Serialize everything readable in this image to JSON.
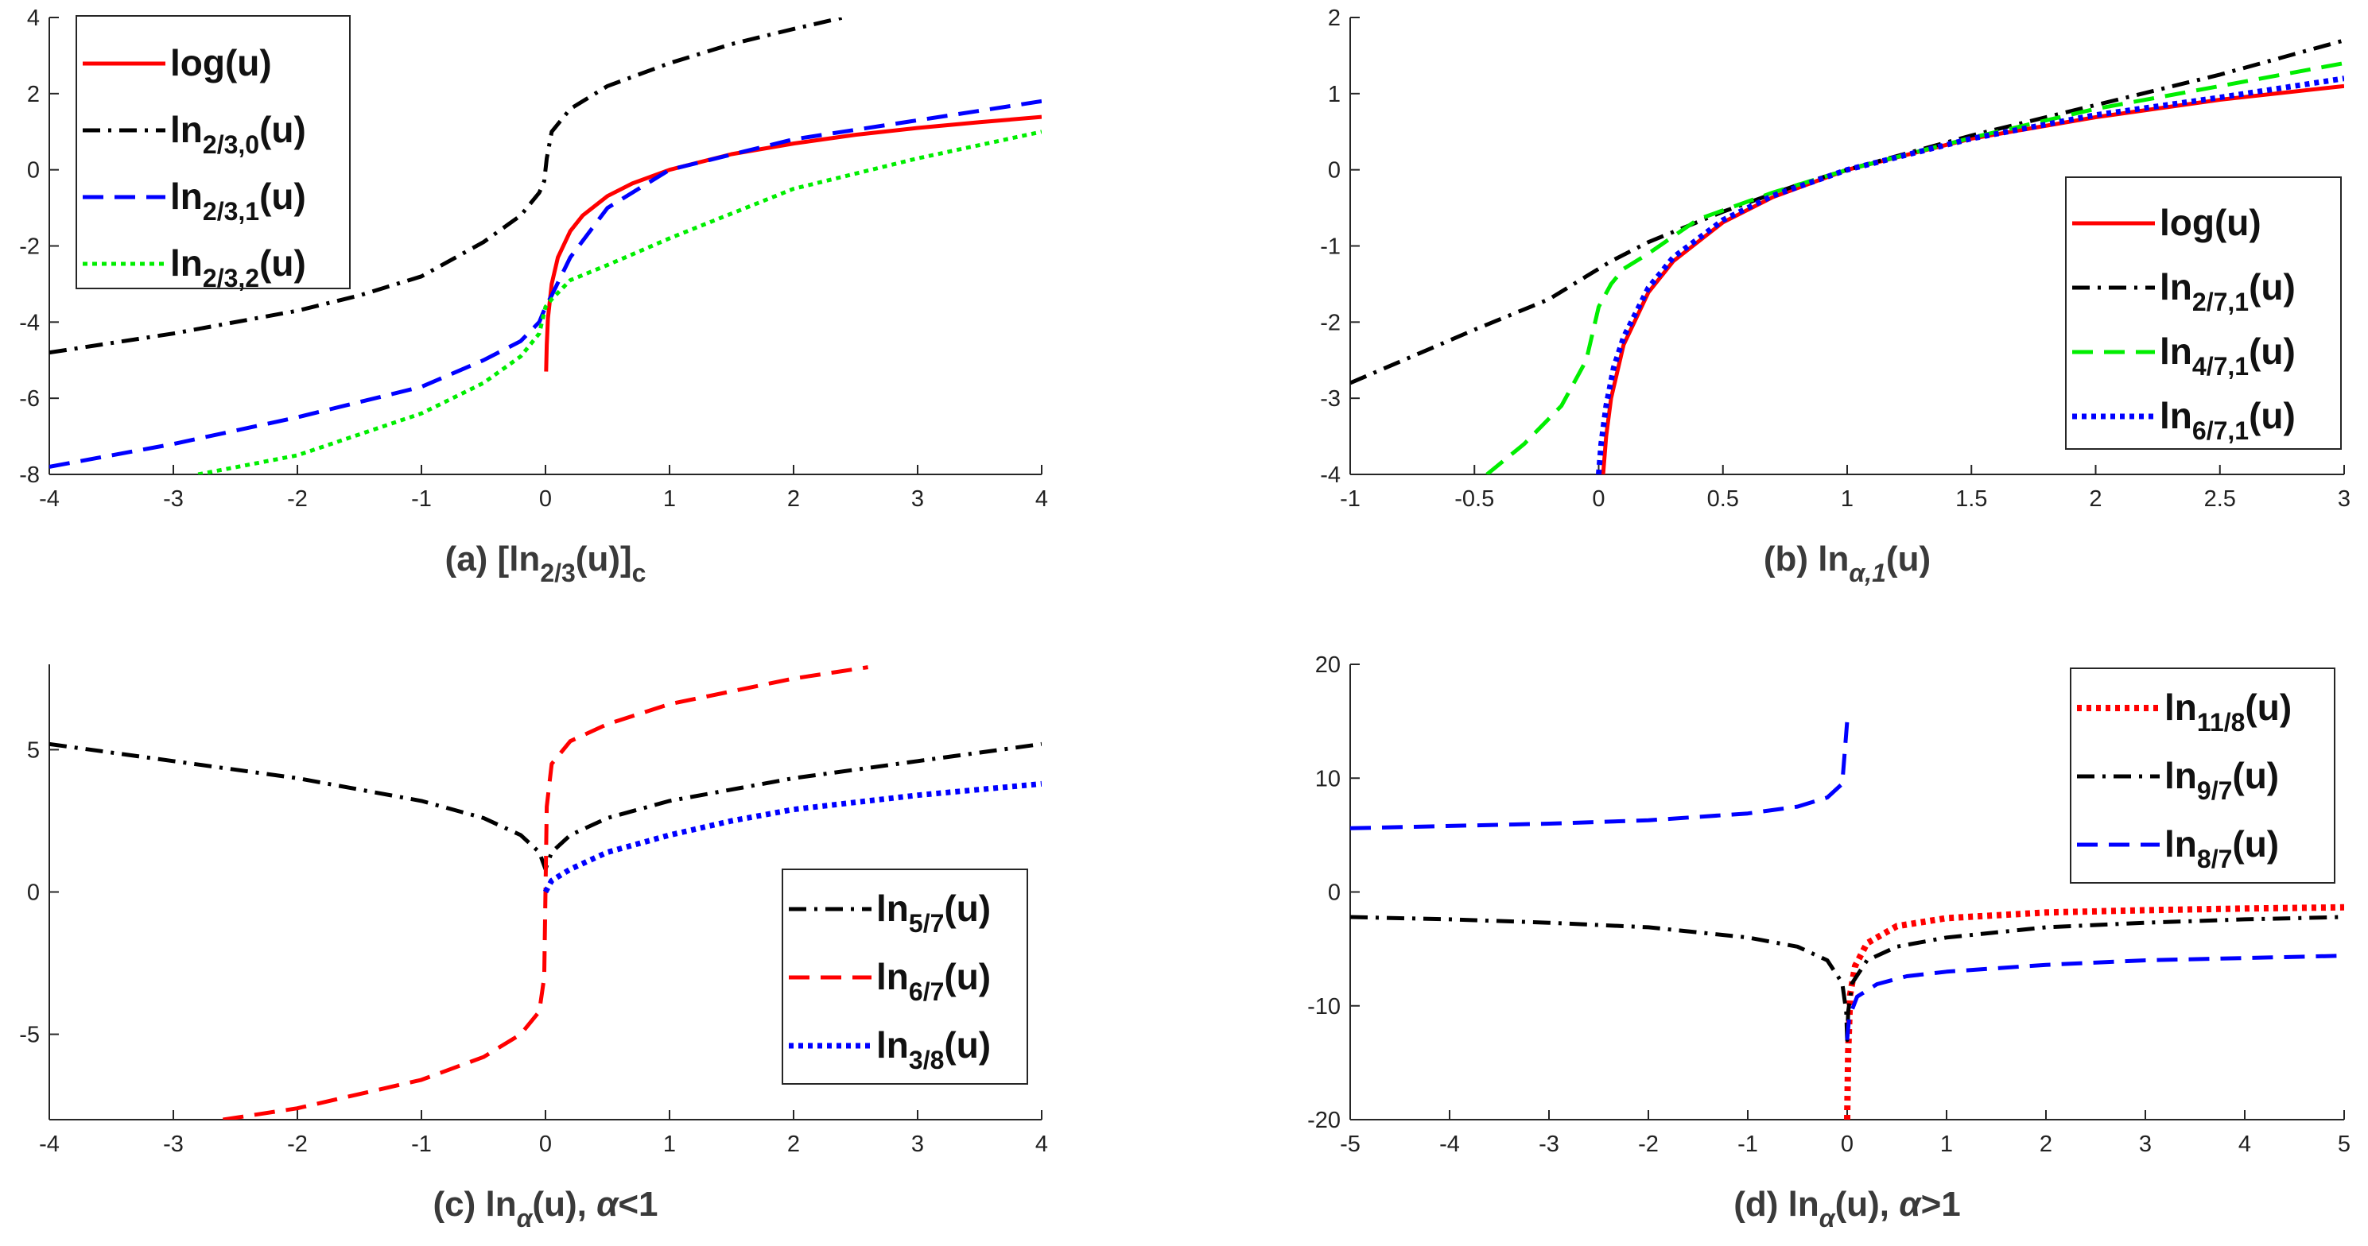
{
  "chart_data": [
    {
      "type": "line",
      "caption": "(a) [ln2/3(u)]c",
      "caption_parts": {
        "pre": "(a) [ln",
        "sub1": "2/3",
        "mid": "(u)]",
        "sub2": "c"
      },
      "xlim": [
        -4,
        4
      ],
      "ylim": [
        -8,
        4
      ],
      "xticks": [
        -4,
        -3,
        -2,
        -1,
        0,
        1,
        2,
        3,
        4
      ],
      "yticks": [
        -8,
        -6,
        -4,
        -2,
        0,
        2,
        4
      ],
      "legend_position": "top-left",
      "series": [
        {
          "name": "log(u)",
          "label": "log(u)",
          "sub": "",
          "color": "#ff0000",
          "dash": "solid",
          "width": 5,
          "x": [
            0.005,
            0.01,
            0.02,
            0.05,
            0.1,
            0.2,
            0.3,
            0.5,
            0.7,
            1,
            1.5,
            2,
            2.5,
            3,
            3.5,
            4
          ],
          "y": [
            -5.3,
            -4.6,
            -3.9,
            -3.0,
            -2.3,
            -1.61,
            -1.2,
            -0.69,
            -0.36,
            0,
            0.41,
            0.69,
            0.92,
            1.1,
            1.25,
            1.39
          ]
        },
        {
          "name": "ln2/3,0(u)",
          "label": "ln",
          "sub": "2/3,0",
          "color": "#000000",
          "dash": "dashdot",
          "width": 5,
          "x": [
            -4,
            -3,
            -2,
            -1.5,
            -1,
            -0.5,
            -0.2,
            -0.05,
            -0.01,
            0,
            0.01,
            0.05,
            0.2,
            0.5,
            1,
            1.5,
            2,
            2.4
          ],
          "y": [
            -4.8,
            -4.3,
            -3.7,
            -3.3,
            -2.8,
            -1.9,
            -1.2,
            -0.6,
            -0.3,
            0,
            0.3,
            1.0,
            1.6,
            2.2,
            2.8,
            3.3,
            3.7,
            4.0
          ]
        },
        {
          "name": "ln2/3,1(u)",
          "label": "ln",
          "sub": "2/3,1",
          "color": "#0000ff",
          "dash": "dashed",
          "width": 5,
          "x": [
            -4,
            -3,
            -2,
            -1,
            -0.5,
            -0.2,
            -0.05,
            0,
            0.05,
            0.2,
            0.5,
            1,
            2,
            3,
            4
          ],
          "y": [
            -7.8,
            -7.2,
            -6.5,
            -5.7,
            -5.0,
            -4.5,
            -4.0,
            -3.6,
            -3.3,
            -2.3,
            -1.0,
            0,
            0.8,
            1.3,
            1.8
          ]
        },
        {
          "name": "ln2/3,2(u)",
          "label": "ln",
          "sub": "2/3,2",
          "color": "#00ee00",
          "dash": "dotted",
          "width": 5,
          "x": [
            -2.8,
            -2,
            -1,
            -0.5,
            -0.2,
            -0.05,
            0,
            0.05,
            0.2,
            0.5,
            1,
            2,
            3,
            4
          ],
          "y": [
            -8.0,
            -7.5,
            -6.4,
            -5.6,
            -4.9,
            -4.3,
            -3.6,
            -3.4,
            -2.9,
            -2.5,
            -1.8,
            -0.5,
            0.3,
            1.0
          ]
        }
      ]
    },
    {
      "type": "line",
      "caption": "(b) lnα,1(u)",
      "caption_parts": {
        "pre": "(b) ln",
        "sub1": "α,1",
        "mid": "(u)",
        "sub2": ""
      },
      "xlim": [
        -1,
        3
      ],
      "ylim": [
        -4,
        2
      ],
      "xticks": [
        -1,
        -0.5,
        0,
        0.5,
        1,
        1.5,
        2,
        2.5,
        3
      ],
      "yticks": [
        -4,
        -3,
        -2,
        -1,
        0,
        1,
        2
      ],
      "legend_position": "bottom-right",
      "series": [
        {
          "name": "log(u)",
          "label": "log(u)",
          "sub": "",
          "color": "#ff0000",
          "dash": "solid",
          "width": 5,
          "x": [
            0.018,
            0.03,
            0.05,
            0.1,
            0.2,
            0.3,
            0.5,
            0.7,
            1,
            1.5,
            2,
            2.5,
            3
          ],
          "y": [
            -4.0,
            -3.5,
            -3.0,
            -2.3,
            -1.61,
            -1.2,
            -0.69,
            -0.36,
            0,
            0.41,
            0.69,
            0.92,
            1.1
          ]
        },
        {
          "name": "ln2/7,1(u)",
          "label": "ln",
          "sub": "2/7,1",
          "color": "#000000",
          "dash": "dashdot",
          "width": 5,
          "x": [
            -1,
            -0.5,
            -0.2,
            -0.05,
            0,
            0.05,
            0.2,
            0.5,
            0.8,
            1,
            1.5,
            2,
            2.5,
            3
          ],
          "y": [
            -2.8,
            -2.1,
            -1.7,
            -1.4,
            -1.3,
            -1.2,
            -0.95,
            -0.55,
            -0.2,
            0,
            0.45,
            0.85,
            1.25,
            1.7
          ]
        },
        {
          "name": "ln4/7,1(u)",
          "label": "ln",
          "sub": "4/7,1",
          "color": "#00ee00",
          "dash": "dashed",
          "width": 5,
          "x": [
            -0.45,
            -0.3,
            -0.15,
            -0.05,
            0,
            0.05,
            0.1,
            0.2,
            0.4,
            0.7,
            1,
            1.5,
            2,
            2.5,
            3
          ],
          "y": [
            -4.0,
            -3.6,
            -3.1,
            -2.5,
            -1.8,
            -1.5,
            -1.3,
            -1.1,
            -0.65,
            -0.3,
            0,
            0.42,
            0.8,
            1.1,
            1.4
          ]
        },
        {
          "name": "ln6/7,1(u)",
          "label": "ln",
          "sub": "6/7,1",
          "color": "#0000ff",
          "dash": "dotted",
          "width": 7,
          "x": [
            0,
            0.01,
            0.03,
            0.06,
            0.1,
            0.2,
            0.3,
            0.5,
            0.7,
            1,
            1.5,
            2,
            2.5,
            3
          ],
          "y": [
            -4.0,
            -3.6,
            -3.1,
            -2.6,
            -2.2,
            -1.55,
            -1.15,
            -0.66,
            -0.34,
            0,
            0.41,
            0.72,
            0.95,
            1.2
          ]
        }
      ]
    },
    {
      "type": "line",
      "caption": "(c) lnα(u), α<1",
      "caption_parts": {
        "pre": "(c) ln",
        "sub1": "α",
        "mid": "(u), ",
        "sub2": "",
        "alpha": "α",
        "post": "<1"
      },
      "xlim": [
        -4,
        4
      ],
      "ylim": [
        -8,
        8
      ],
      "xticks": [
        -4,
        -3,
        -2,
        -1,
        0,
        1,
        2,
        3,
        4
      ],
      "yticks": [
        -5,
        0,
        5
      ],
      "legend_position": "bottom-right",
      "series": [
        {
          "name": "ln5/7(u)",
          "label": "ln",
          "sub": "5/7",
          "color": "#000000",
          "dash": "dashdot",
          "width": 5,
          "x": [
            -4,
            -3,
            -2,
            -1,
            -0.5,
            -0.2,
            -0.05,
            0,
            0.05,
            0.2,
            0.5,
            1,
            2,
            3,
            4
          ],
          "y": [
            5.2,
            4.6,
            4.0,
            3.2,
            2.6,
            2.0,
            1.4,
            0.8,
            1.4,
            2.0,
            2.6,
            3.2,
            4.0,
            4.6,
            5.2
          ]
        },
        {
          "name": "ln6/7(u)",
          "label": "ln",
          "sub": "6/7",
          "color": "#ff0000",
          "dash": "dashed",
          "width": 5,
          "x": [
            -2.6,
            -2,
            -1,
            -0.5,
            -0.2,
            -0.05,
            -0.01,
            0,
            0.01,
            0.05,
            0.2,
            0.5,
            1,
            2,
            2.6
          ],
          "y": [
            -8.0,
            -7.6,
            -6.6,
            -5.8,
            -5.0,
            -4.2,
            -3.0,
            0,
            3.0,
            4.5,
            5.3,
            5.9,
            6.6,
            7.5,
            7.9
          ]
        },
        {
          "name": "ln3/8(u)",
          "label": "ln",
          "sub": "3/8",
          "color": "#0000ff",
          "dash": "dotted",
          "width": 7,
          "x": [
            0,
            0.05,
            0.2,
            0.5,
            1,
            1.5,
            2,
            3,
            4
          ],
          "y": [
            0,
            0.4,
            0.8,
            1.4,
            2.0,
            2.5,
            2.9,
            3.4,
            3.8
          ]
        }
      ]
    },
    {
      "type": "line",
      "caption": "(d) lnα(u), α>1",
      "caption_parts": {
        "pre": "(d) ln",
        "sub1": "α",
        "mid": "(u), ",
        "sub2": "",
        "alpha": "α",
        "post": ">1"
      },
      "xlim": [
        -5,
        5
      ],
      "ylim": [
        -20,
        20
      ],
      "xticks": [
        -5,
        -4,
        -3,
        -2,
        -1,
        0,
        1,
        2,
        3,
        4,
        5
      ],
      "yticks": [
        -20,
        -10,
        0,
        10,
        20
      ],
      "legend_position": "top-right",
      "series": [
        {
          "name": "ln11/8(u)",
          "label": "ln",
          "sub": "11/8",
          "color": "#ff0000",
          "dash": "dotted",
          "width": 8,
          "x": [
            0,
            0.01,
            0.03,
            0.08,
            0.2,
            0.5,
            1,
            2,
            3,
            4,
            5
          ],
          "y": [
            -20,
            -14,
            -9.0,
            -6.5,
            -4.5,
            -3.0,
            -2.3,
            -1.8,
            -1.6,
            -1.45,
            -1.35
          ]
        },
        {
          "name": "ln9/7(u)",
          "label": "ln",
          "sub": "9/7",
          "color": "#000000",
          "dash": "dashdot",
          "width": 5,
          "x": [
            -5,
            -4,
            -3,
            -2,
            -1,
            -0.5,
            -0.2,
            -0.05,
            -0.01,
            0,
            0.01,
            0.05,
            0.2,
            0.5,
            1,
            2,
            3,
            4,
            5
          ],
          "y": [
            -2.2,
            -2.4,
            -2.7,
            -3.1,
            -4.0,
            -4.8,
            -6.0,
            -8.0,
            -10.5,
            -13,
            -10.5,
            -8.0,
            -6.0,
            -4.8,
            -4.0,
            -3.1,
            -2.7,
            -2.4,
            -2.2
          ]
        },
        {
          "name": "ln8/7(u)",
          "label": "ln",
          "sub": "8/7",
          "color": "#0000ff",
          "dash": "dashed",
          "width": 5,
          "x": [
            -5,
            -4,
            -3,
            -2,
            -1,
            -0.5,
            -0.2,
            -0.05,
            0
          ],
          "y": [
            5.6,
            5.8,
            6.0,
            6.3,
            6.9,
            7.5,
            8.3,
            9.5,
            15
          ],
          "x2": [
            0,
            0.02,
            0.1,
            0.3,
            0.6,
            1,
            2,
            3,
            4,
            5
          ],
          "y2": [
            -13,
            -11,
            -9.2,
            -8.1,
            -7.4,
            -7.0,
            -6.4,
            -6.0,
            -5.8,
            -5.6
          ]
        }
      ]
    }
  ]
}
